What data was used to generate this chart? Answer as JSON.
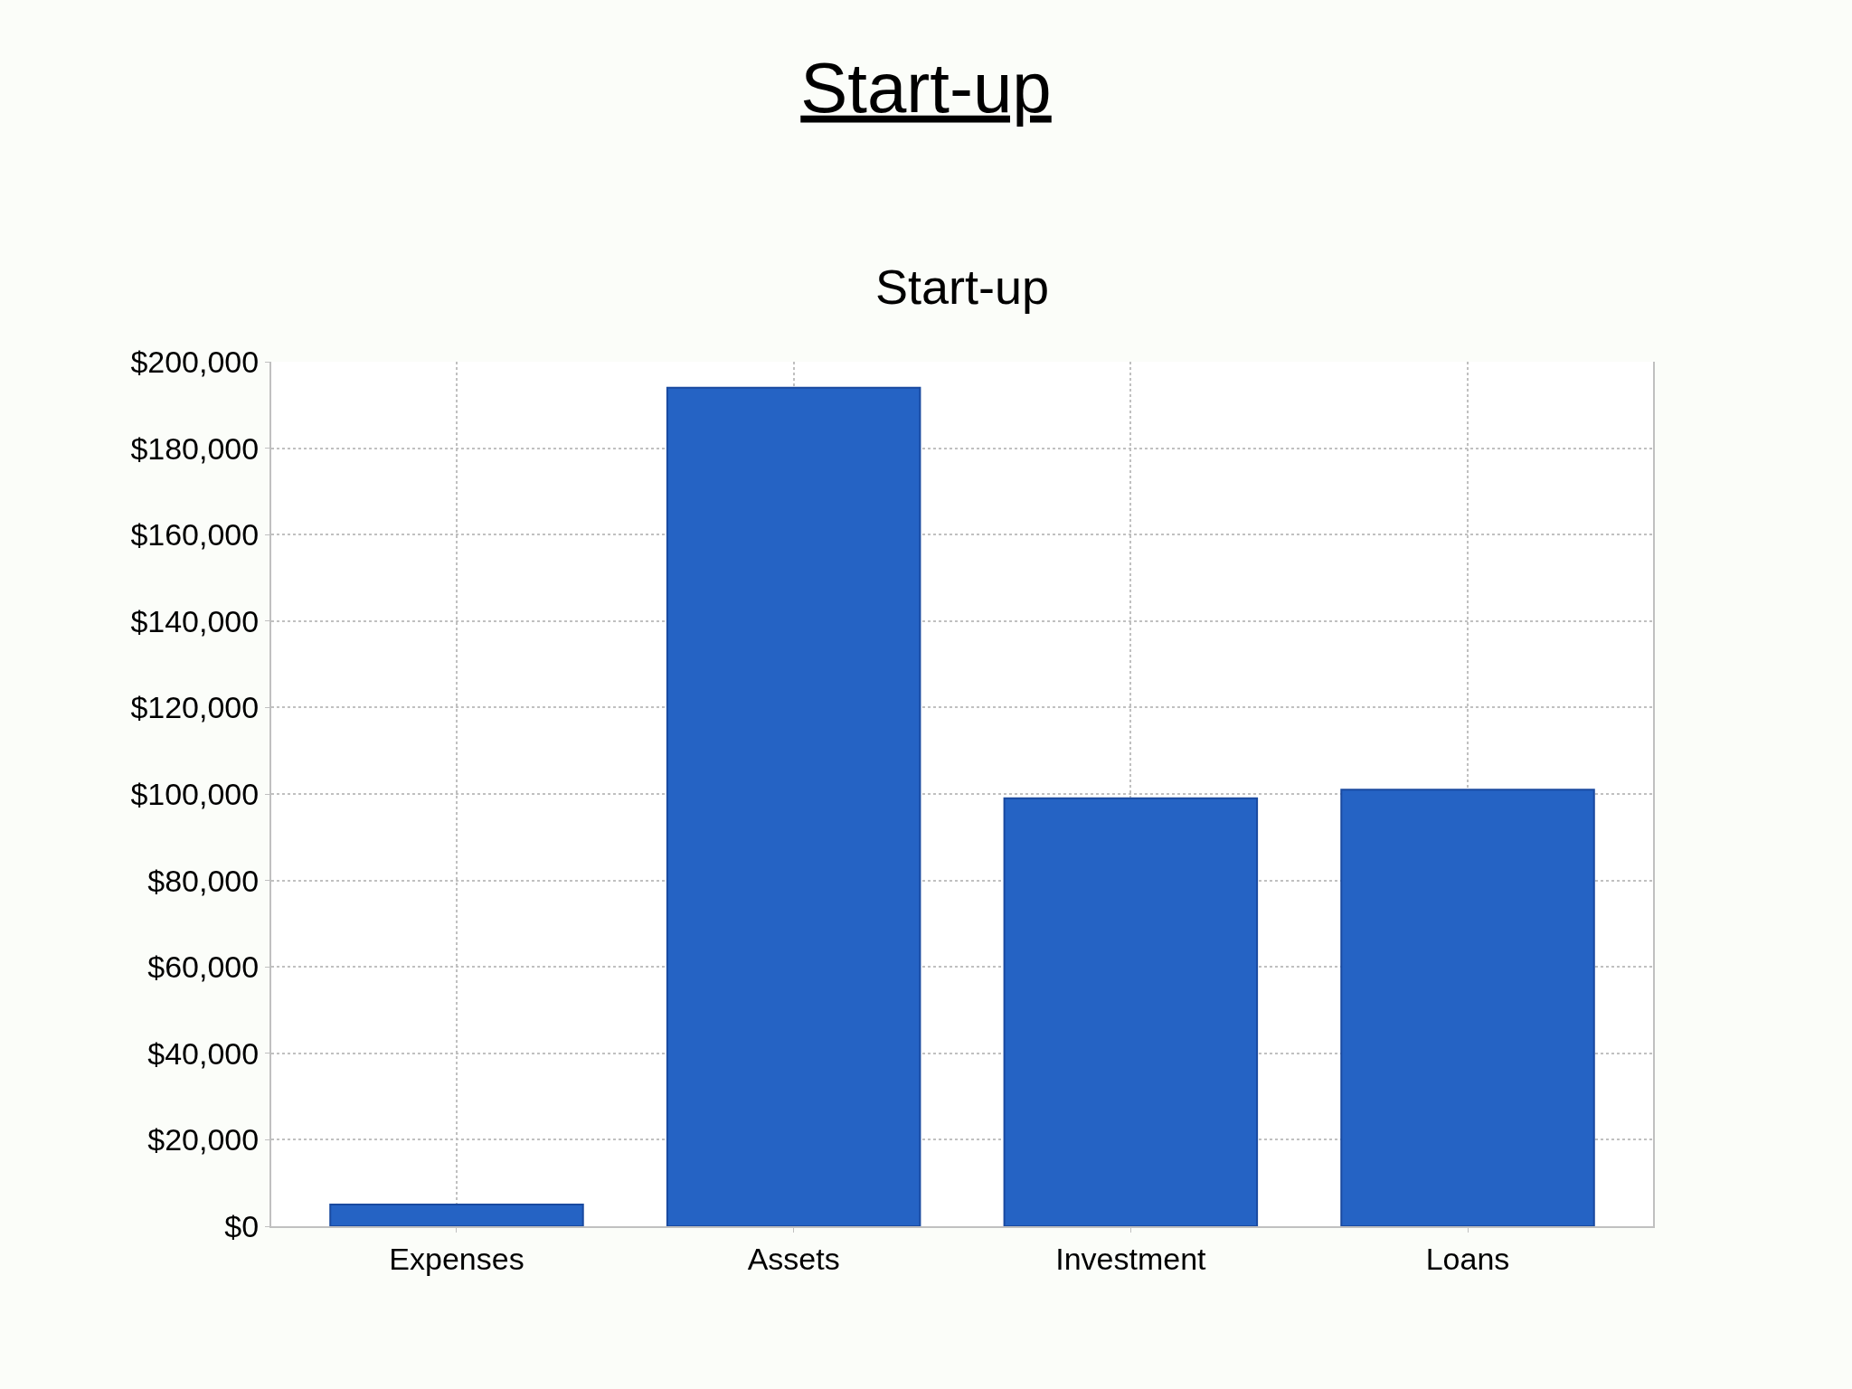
{
  "chart_data": {
    "type": "bar",
    "title": "Start-up",
    "subtitle": "Start-up",
    "categories": [
      "Expenses",
      "Assets",
      "Investment",
      "Loans"
    ],
    "values": [
      5000,
      194000,
      99000,
      101000
    ],
    "color": "#2563c4",
    "ylim": [
      0,
      200000
    ],
    "yticks": [
      {
        "value": 0,
        "label": "$0"
      },
      {
        "value": 20000,
        "label": "$20,000"
      },
      {
        "value": 40000,
        "label": "$40,000"
      },
      {
        "value": 60000,
        "label": "$60,000"
      },
      {
        "value": 80000,
        "label": "$80,000"
      },
      {
        "value": 100000,
        "label": "$100,000"
      },
      {
        "value": 120000,
        "label": "$120,000"
      },
      {
        "value": 140000,
        "label": "$140,000"
      },
      {
        "value": 160000,
        "label": "$160,000"
      },
      {
        "value": 180000,
        "label": "$180,000"
      },
      {
        "value": 200000,
        "label": "$200,000"
      }
    ],
    "grid": true
  }
}
